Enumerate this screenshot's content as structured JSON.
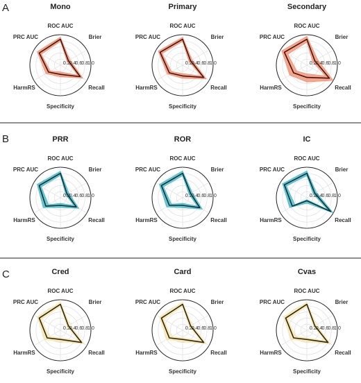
{
  "panel_labels": [
    "A",
    "B",
    "C"
  ],
  "chart_data": [
    {
      "type": "radar",
      "title": "Mono",
      "categories": [
        "ROC AUC",
        "Brier",
        "Recall",
        "Specificity",
        "HarmRS",
        "PRC AUC"
      ],
      "values": [
        0.85,
        0.3,
        0.75,
        0.3,
        0.45,
        0.8
      ],
      "lower": [
        0.78,
        0.25,
        0.65,
        0.22,
        0.38,
        0.72
      ],
      "upper": [
        0.92,
        0.36,
        0.85,
        0.38,
        0.55,
        0.88
      ],
      "color": "#ef8a6a",
      "line_color": "#4a1208",
      "rlim": [
        0,
        1
      ],
      "rticks": [
        0.2,
        0.4,
        0.6,
        0.8,
        {
          "value": 1,
          "label": "1.0"
        }
      ]
    },
    {
      "type": "radar",
      "title": "Primary",
      "categories": [
        "ROC AUC",
        "Brier",
        "Recall",
        "Specificity",
        "HarmRS",
        "PRC AUC"
      ],
      "values": [
        0.85,
        0.3,
        0.8,
        0.35,
        0.5,
        0.85
      ],
      "lower": [
        0.78,
        0.24,
        0.7,
        0.27,
        0.42,
        0.77
      ],
      "upper": [
        0.92,
        0.36,
        0.9,
        0.43,
        0.58,
        0.92
      ],
      "color": "#ef8a6a",
      "line_color": "#4a1208",
      "rlim": [
        0,
        1
      ],
      "rticks": [
        0.2,
        0.4,
        0.6,
        0.8,
        {
          "value": 1,
          "label": "1.0"
        }
      ]
    },
    {
      "type": "radar",
      "title": "Secondary",
      "categories": [
        "ROC AUC",
        "Brier",
        "Recall",
        "Specificity",
        "HarmRS",
        "PRC AUC"
      ],
      "values": [
        0.85,
        0.3,
        0.85,
        0.4,
        0.5,
        0.85
      ],
      "lower": [
        0.75,
        0.22,
        0.7,
        0.28,
        0.38,
        0.72
      ],
      "upper": [
        0.95,
        0.4,
        1,
        0.55,
        0.65,
        0.95
      ],
      "color": "#ef8a6a",
      "line_color": "#4a1208",
      "rlim": [
        0,
        1
      ],
      "rticks": [
        0.2,
        0.4,
        0.6,
        0.8,
        {
          "value": 1,
          "label": "1.0"
        }
      ]
    },
    {
      "type": "radar",
      "title": "PRR",
      "categories": [
        "ROC AUC",
        "Brier",
        "Recall",
        "Specificity",
        "HarmRS",
        "PRC AUC"
      ],
      "values": [
        0.8,
        0.25,
        0.6,
        0.25,
        0.55,
        0.8
      ],
      "lower": [
        0.73,
        0.2,
        0.5,
        0.18,
        0.45,
        0.72
      ],
      "upper": [
        0.87,
        0.32,
        0.7,
        0.32,
        0.65,
        0.88
      ],
      "color": "#3bb3c3",
      "line_color": "#06323a",
      "rlim": [
        0,
        1
      ],
      "rticks": [
        0.2,
        0.4,
        0.6,
        0.8,
        {
          "value": 1,
          "label": "1.0"
        }
      ]
    },
    {
      "type": "radar",
      "title": "ROR",
      "categories": [
        "ROC AUC",
        "Brier",
        "Recall",
        "Specificity",
        "HarmRS",
        "PRC AUC"
      ],
      "values": [
        0.8,
        0.3,
        0.65,
        0.25,
        0.5,
        0.8
      ],
      "lower": [
        0.72,
        0.24,
        0.55,
        0.18,
        0.42,
        0.72
      ],
      "upper": [
        0.88,
        0.36,
        0.75,
        0.33,
        0.6,
        0.88
      ],
      "color": "#3bb3c3",
      "line_color": "#06323a",
      "rlim": [
        0,
        1
      ],
      "rticks": [
        0.2,
        0.4,
        0.6,
        0.8,
        {
          "value": 1,
          "label": "1.0"
        }
      ]
    },
    {
      "type": "radar",
      "title": "IC",
      "categories": [
        "ROC AUC",
        "Brier",
        "Recall",
        "Specificity",
        "HarmRS",
        "PRC AUC"
      ],
      "values": [
        0.8,
        0.3,
        0.9,
        0.1,
        0.55,
        0.85
      ],
      "lower": [
        0.72,
        0.24,
        0.78,
        0.06,
        0.45,
        0.77
      ],
      "upper": [
        0.88,
        0.36,
        1,
        0.18,
        0.65,
        0.92
      ],
      "color": "#3bb3c3",
      "line_color": "#06323a",
      "rlim": [
        0,
        1
      ],
      "rticks": [
        0.2,
        0.4,
        0.6,
        0.8,
        {
          "value": 1,
          "label": "1.0"
        }
      ]
    },
    {
      "type": "radar",
      "title": "Cred",
      "categories": [
        "ROC AUC",
        "Brier",
        "Recall",
        "Specificity",
        "HarmRS",
        "PRC AUC"
      ],
      "values": [
        0.85,
        0.3,
        0.8,
        0.3,
        0.5,
        0.8
      ],
      "lower": [
        0.78,
        0.25,
        0.7,
        0.24,
        0.42,
        0.72
      ],
      "upper": [
        0.92,
        0.36,
        0.9,
        0.38,
        0.6,
        0.88
      ],
      "color": "#f5e3a6",
      "line_color": "#2e2608",
      "rlim": [
        0,
        1
      ],
      "rticks": [
        0.2,
        0.4,
        0.6,
        0.8,
        {
          "value": 1,
          "label": "1.0"
        }
      ]
    },
    {
      "type": "radar",
      "title": "Card",
      "categories": [
        "ROC AUC",
        "Brier",
        "Recall",
        "Specificity",
        "HarmRS",
        "PRC AUC"
      ],
      "values": [
        0.85,
        0.3,
        0.8,
        0.3,
        0.5,
        0.8
      ],
      "lower": [
        0.78,
        0.25,
        0.7,
        0.24,
        0.42,
        0.72
      ],
      "upper": [
        0.92,
        0.36,
        0.9,
        0.38,
        0.6,
        0.88
      ],
      "color": "#f5e3a6",
      "line_color": "#2e2608",
      "rlim": [
        0,
        1
      ],
      "rticks": [
        0.2,
        0.4,
        0.6,
        0.8,
        {
          "value": 1,
          "label": "1.0"
        }
      ]
    },
    {
      "type": "radar",
      "title": "Cvas",
      "categories": [
        "ROC AUC",
        "Brier",
        "Recall",
        "Specificity",
        "HarmRS",
        "PRC AUC"
      ],
      "values": [
        0.85,
        0.3,
        0.8,
        0.3,
        0.5,
        0.8
      ],
      "lower": [
        0.78,
        0.25,
        0.7,
        0.24,
        0.42,
        0.72
      ],
      "upper": [
        0.92,
        0.36,
        0.9,
        0.38,
        0.6,
        0.88
      ],
      "color": "#f5e3a6",
      "line_color": "#2e2608",
      "rlim": [
        0,
        1
      ],
      "rticks": [
        0.2,
        0.4,
        0.6,
        0.8,
        {
          "value": 1,
          "label": "1.0"
        }
      ]
    }
  ]
}
